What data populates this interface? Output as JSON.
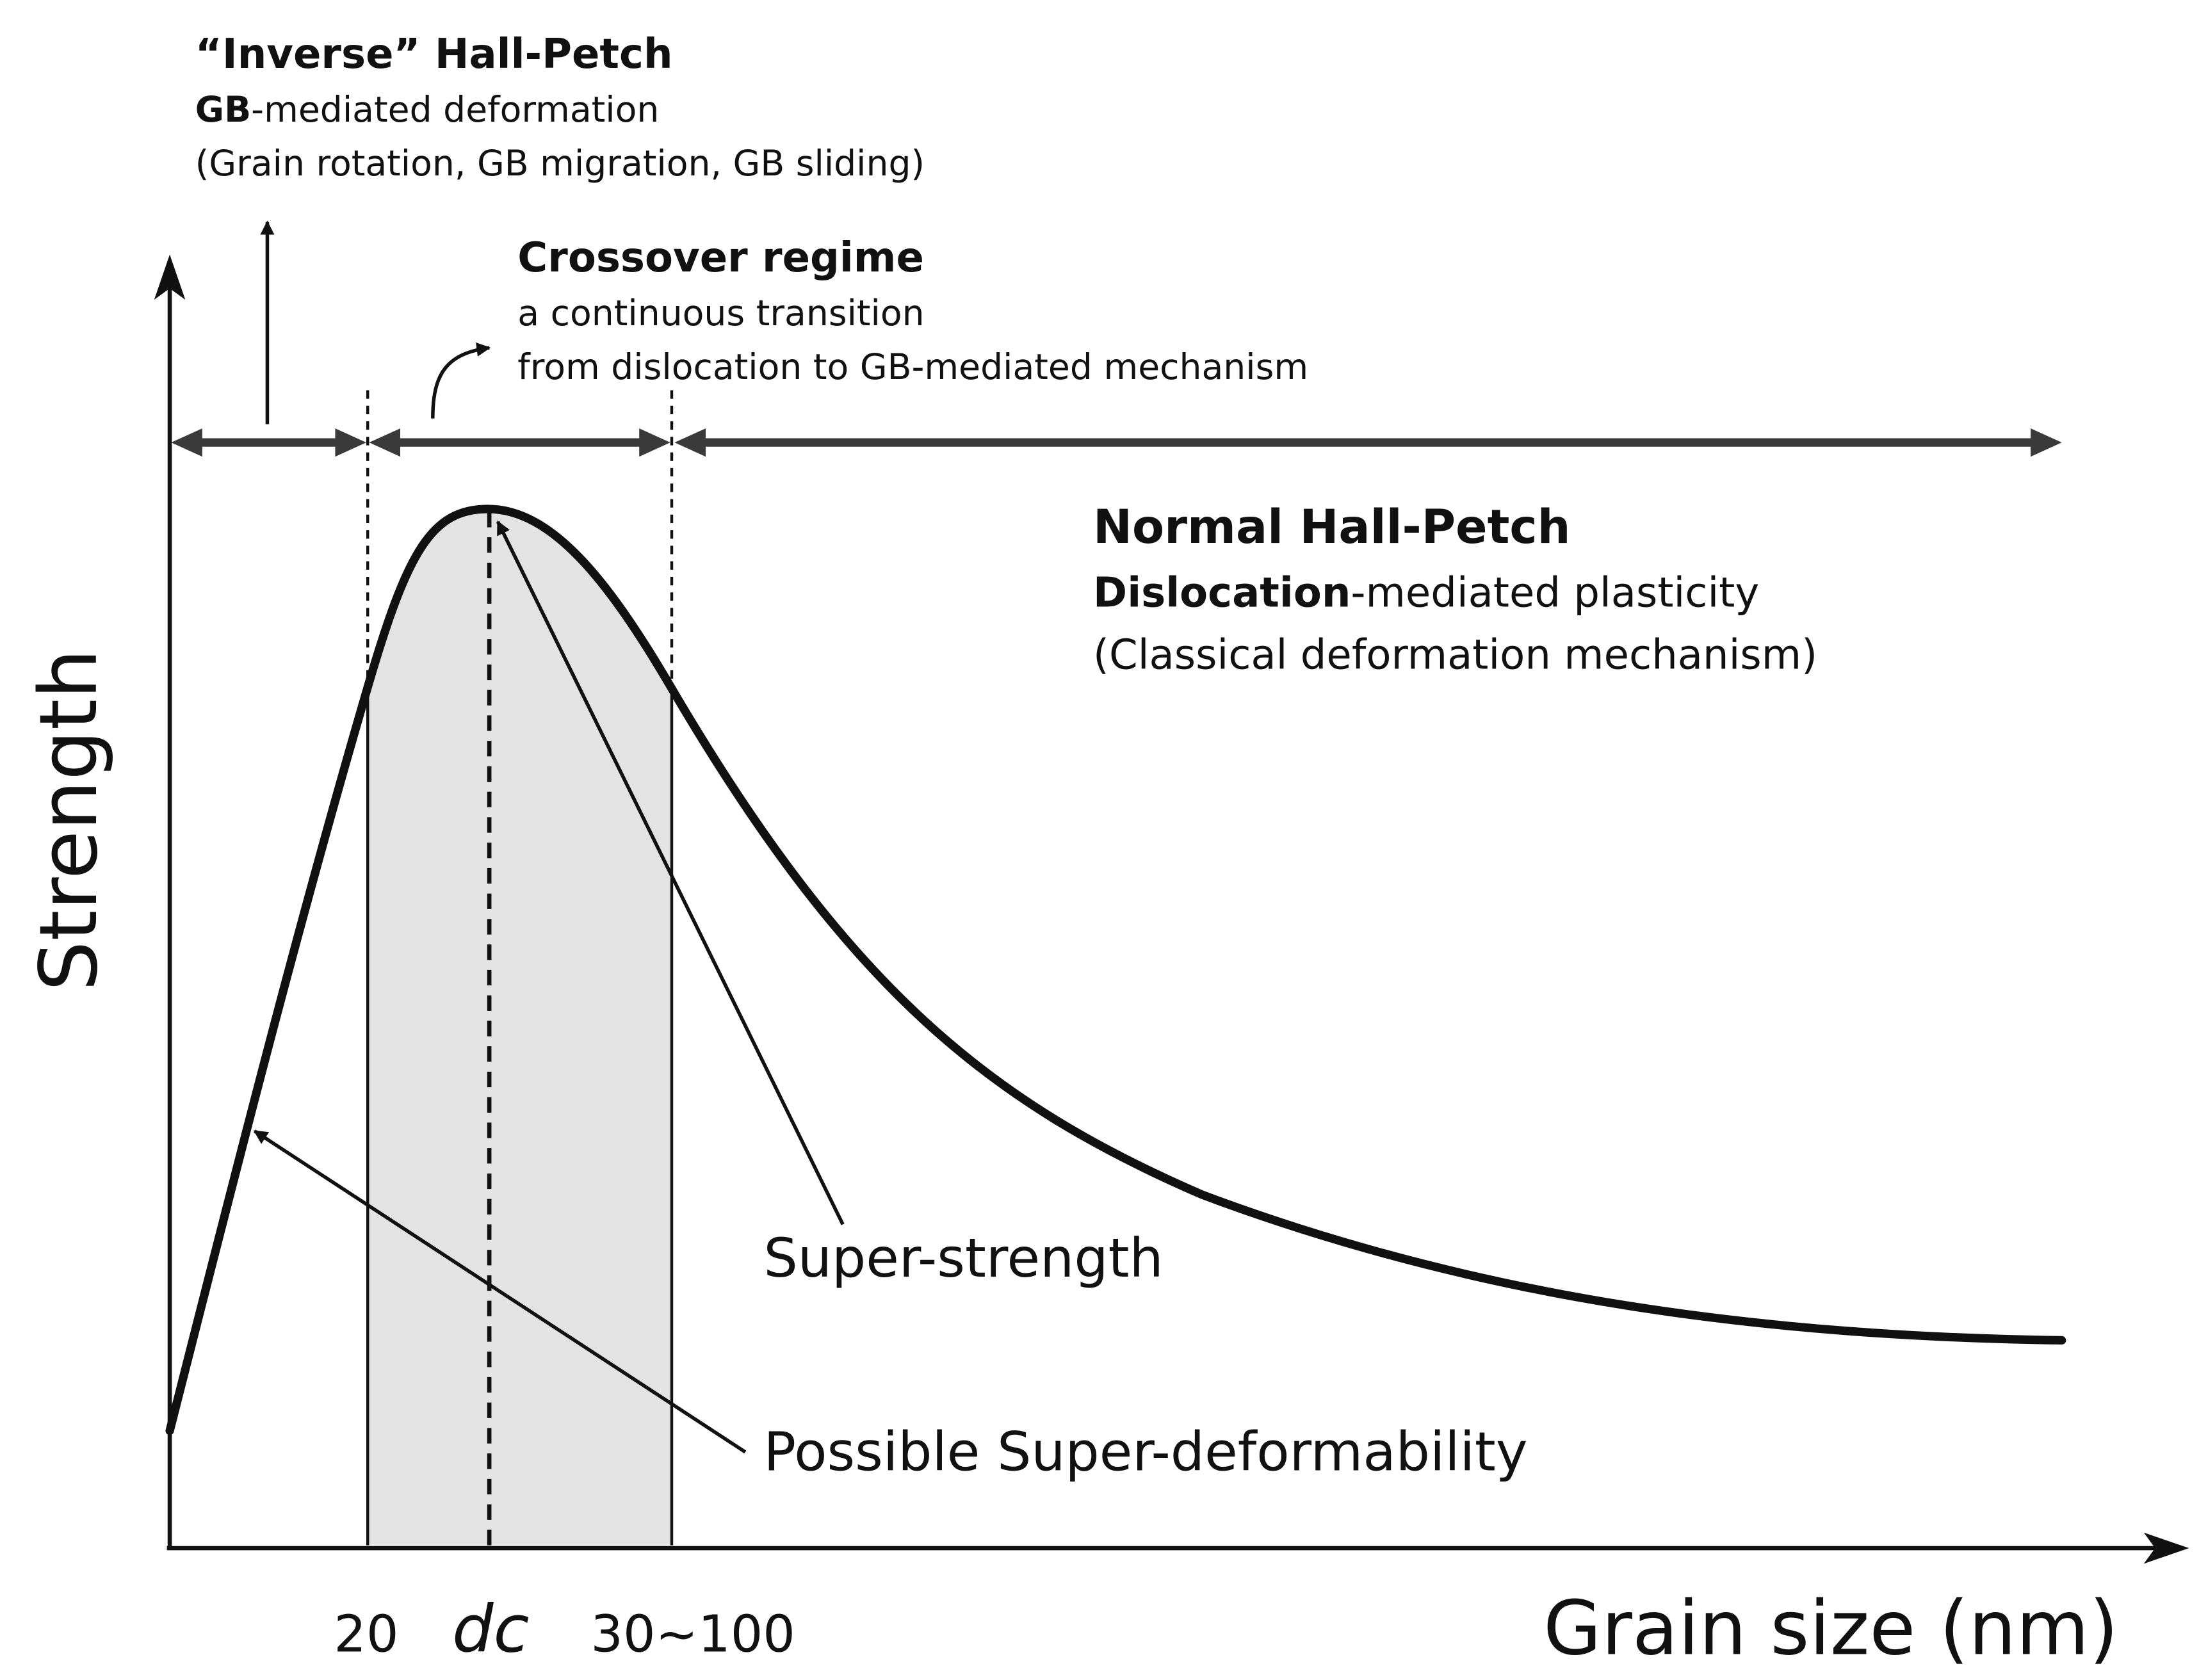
{
  "colors": {
    "ink": "#111111",
    "shade": "#e3e3e3",
    "arrow_fill": "#3a3a3a",
    "background": "#ffffff"
  },
  "axes": {
    "ylabel": "Strength",
    "xlabel": "Grain size (nm)",
    "ticks": {
      "left": "20",
      "critical_italic": "dc",
      "right": "30~100"
    }
  },
  "inverse_hp": {
    "title": "“Inverse” Hall-Petch",
    "line2_bold": "GB",
    "line2_rest": "-mediated deformation",
    "line3": "(Grain rotation, GB migration, GB sliding)"
  },
  "crossover": {
    "title": "Crossover regime",
    "line2": "a continuous transition",
    "line3": "from dislocation to GB-mediated mechanism"
  },
  "normal_hp": {
    "title": "Normal Hall-Petch",
    "line2_bold": "Dislocation",
    "line2_rest": "-mediated plasticity",
    "line3": "(Classical deformation mechanism)"
  },
  "annotations": {
    "super_strength": "Super-strength",
    "super_deformability": "Possible Super-deformability"
  }
}
